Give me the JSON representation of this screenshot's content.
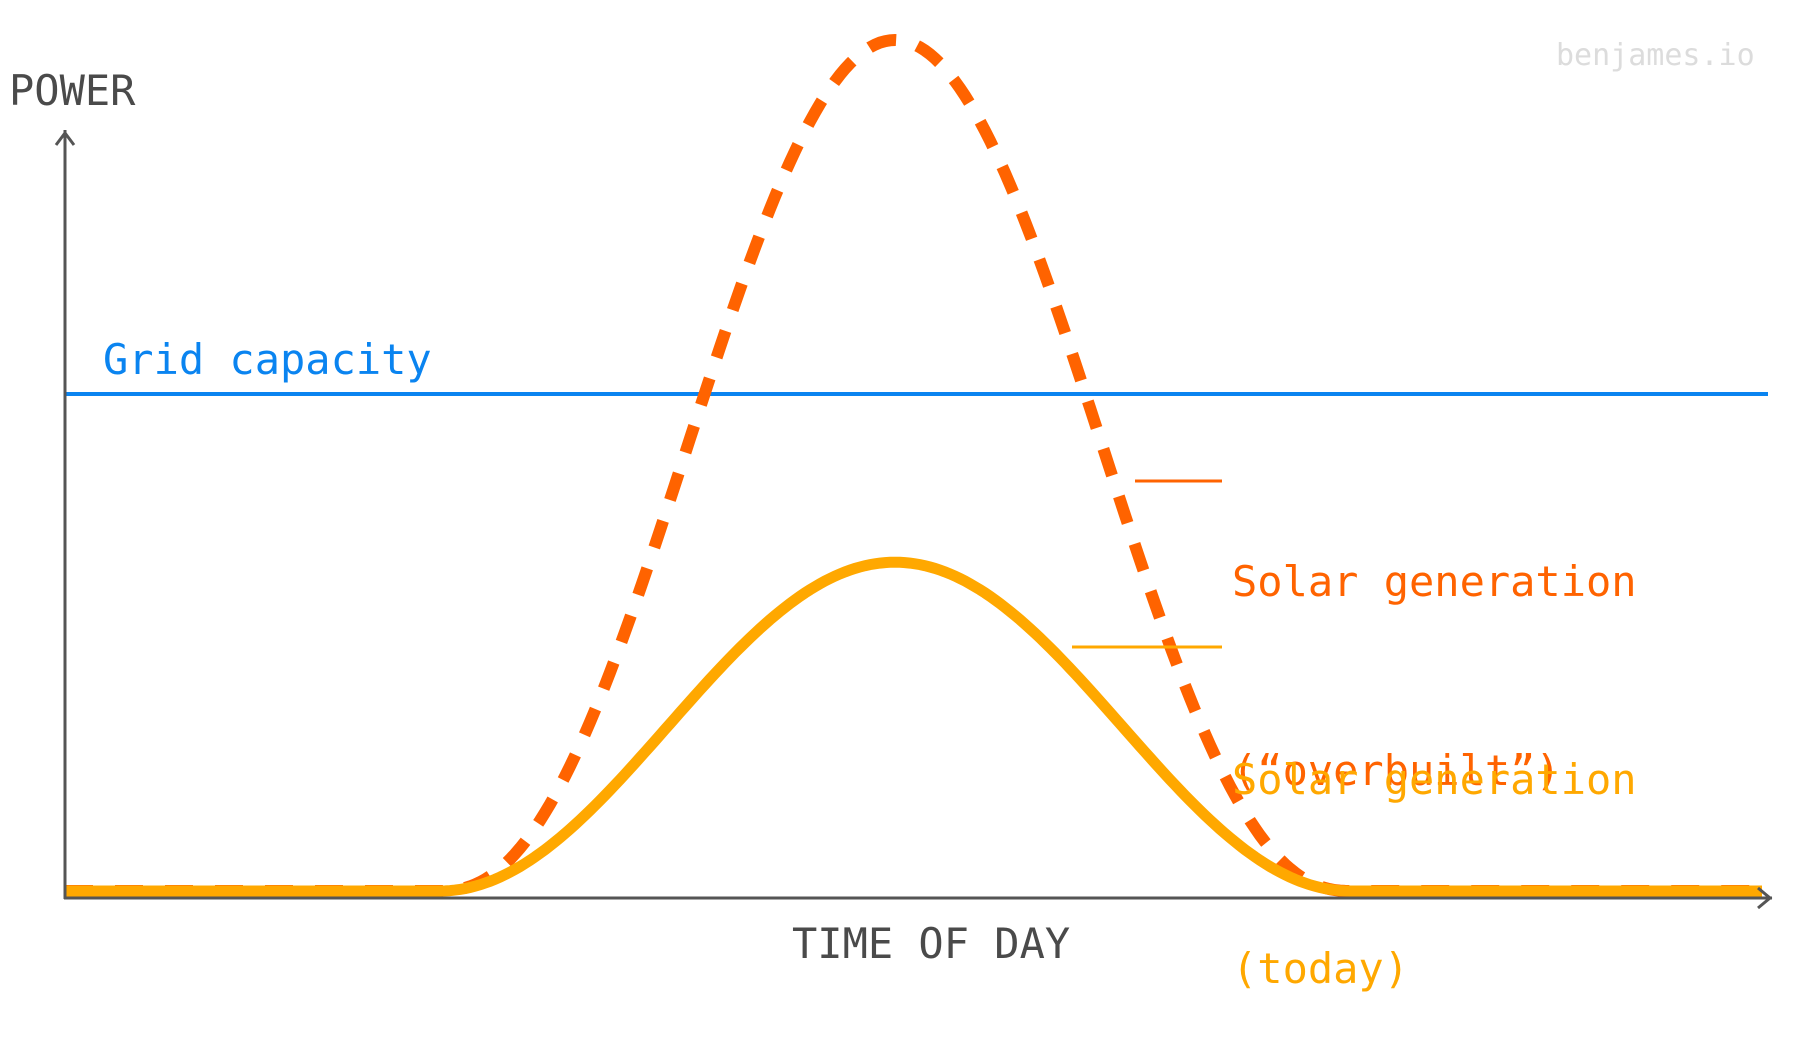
{
  "watermark": "benjames.io",
  "axes": {
    "ylabel": "POWER",
    "xlabel": "TIME OF DAY"
  },
  "annotations": {
    "grid_capacity": "Grid capacity",
    "overbuilt_line1": "Solar generation",
    "overbuilt_line2": "(“overbuilt”)",
    "today_line1": "Solar generation",
    "today_line2": "(today)"
  },
  "colors": {
    "axis": "#555555",
    "grid_capacity": "#0a84f0",
    "overbuilt": "#ff6300",
    "today": "#ffa800",
    "watermark": "#dcdcdc",
    "axis_text": "#4a4a4a"
  },
  "chart_data": {
    "type": "line",
    "title": "",
    "xlabel": "TIME OF DAY",
    "ylabel": "POWER",
    "grid": false,
    "legend_position": "inline annotations right of curves",
    "x": [
      0,
      2,
      4,
      6,
      8,
      10,
      12,
      14,
      16,
      18,
      20,
      22,
      24
    ],
    "ylim": [
      0,
      100
    ],
    "series": [
      {
        "name": "Solar generation (“overbuilt”)",
        "style": "dashed",
        "color": "#ff6300",
        "values": [
          0,
          0,
          0,
          0,
          3,
          55,
          88,
          55,
          3,
          0,
          0,
          0,
          0
        ],
        "peak": 88
      },
      {
        "name": "Solar generation (today)",
        "style": "solid",
        "color": "#ffa800",
        "values": [
          0,
          0,
          0,
          0,
          1,
          16,
          34,
          16,
          1,
          0,
          0,
          0,
          0
        ],
        "peak": 34
      },
      {
        "name": "Grid capacity",
        "style": "solid",
        "color": "#0a84f0",
        "values": [
          59,
          59,
          59,
          59,
          59,
          59,
          59,
          59,
          59,
          59,
          59,
          59,
          59
        ]
      }
    ],
    "annotations": [
      "Grid capacity",
      "Solar generation (“overbuilt”)",
      "Solar generation (today)"
    ]
  }
}
